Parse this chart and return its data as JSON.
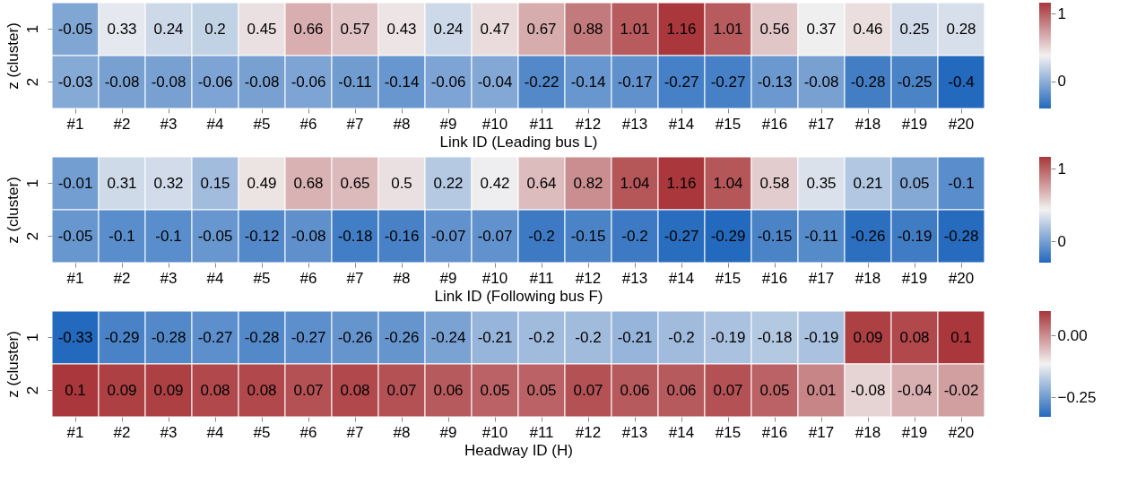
{
  "chart_data": [
    {
      "type": "heatmap",
      "xlabel": "Link ID (Leading bus L)",
      "ylabel": "z (cluster)",
      "categories": [
        "#1",
        "#2",
        "#3",
        "#4",
        "#5",
        "#6",
        "#7",
        "#8",
        "#9",
        "#10",
        "#11",
        "#12",
        "#13",
        "#14",
        "#15",
        "#16",
        "#17",
        "#18",
        "#19",
        "#20"
      ],
      "y_categories": [
        "1",
        "2"
      ],
      "cells": [
        [
          -0.05,
          0.33,
          0.24,
          0.2,
          0.45,
          0.66,
          0.57,
          0.43,
          0.24,
          0.47,
          0.67,
          0.88,
          1.01,
          1.16,
          1.01,
          0.56,
          0.37,
          0.46,
          0.25,
          0.28
        ],
        [
          -0.03,
          -0.08,
          -0.08,
          -0.06,
          -0.08,
          -0.06,
          -0.11,
          -0.14,
          -0.06,
          -0.04,
          -0.22,
          -0.14,
          -0.17,
          -0.27,
          -0.27,
          -0.13,
          -0.08,
          -0.28,
          -0.25,
          -0.4
        ]
      ],
      "clim": [
        -0.4,
        1.16
      ],
      "cticks": [
        0,
        1
      ],
      "data_labels": true
    },
    {
      "type": "heatmap",
      "xlabel": "Link ID (Following bus F)",
      "ylabel": "z (cluster)",
      "categories": [
        "#1",
        "#2",
        "#3",
        "#4",
        "#5",
        "#6",
        "#7",
        "#8",
        "#9",
        "#10",
        "#11",
        "#12",
        "#13",
        "#14",
        "#15",
        "#16",
        "#17",
        "#18",
        "#19",
        "#20"
      ],
      "y_categories": [
        "1",
        "2"
      ],
      "cells": [
        [
          -0.01,
          0.31,
          0.32,
          0.15,
          0.49,
          0.68,
          0.65,
          0.5,
          0.22,
          0.42,
          0.64,
          0.82,
          1.04,
          1.16,
          1.04,
          0.58,
          0.35,
          0.21,
          0.05,
          -0.1
        ],
        [
          -0.05,
          -0.1,
          -0.1,
          -0.05,
          -0.12,
          -0.08,
          -0.18,
          -0.16,
          -0.07,
          -0.07,
          -0.2,
          -0.15,
          -0.2,
          -0.27,
          -0.29,
          -0.15,
          -0.11,
          -0.26,
          -0.19,
          -0.28
        ]
      ],
      "clim": [
        -0.29,
        1.16
      ],
      "cticks": [
        0,
        1
      ],
      "data_labels": true
    },
    {
      "type": "heatmap",
      "xlabel": "Headway ID (H)",
      "ylabel": "z (cluster)",
      "categories": [
        "#1",
        "#2",
        "#3",
        "#4",
        "#5",
        "#6",
        "#7",
        "#8",
        "#9",
        "#10",
        "#11",
        "#12",
        "#13",
        "#14",
        "#15",
        "#16",
        "#17",
        "#18",
        "#19",
        "#20"
      ],
      "y_categories": [
        "1",
        "2"
      ],
      "cells": [
        [
          -0.33,
          -0.29,
          -0.28,
          -0.27,
          -0.28,
          -0.27,
          -0.26,
          -0.26,
          -0.24,
          -0.21,
          -0.2,
          -0.2,
          -0.21,
          -0.2,
          -0.19,
          -0.18,
          -0.19,
          0.09,
          0.08,
          0.1
        ],
        [
          0.1,
          0.09,
          0.09,
          0.08,
          0.08,
          0.07,
          0.08,
          0.07,
          0.06,
          0.05,
          0.05,
          0.07,
          0.06,
          0.06,
          0.07,
          0.05,
          0.01,
          -0.08,
          -0.04,
          -0.02
        ]
      ],
      "clim": [
        -0.33,
        0.1
      ],
      "cticks": [
        {
          "value": 0,
          "label": "0.00"
        },
        {
          "value": -0.25,
          "label": "−0.25"
        }
      ],
      "data_labels": true
    }
  ]
}
